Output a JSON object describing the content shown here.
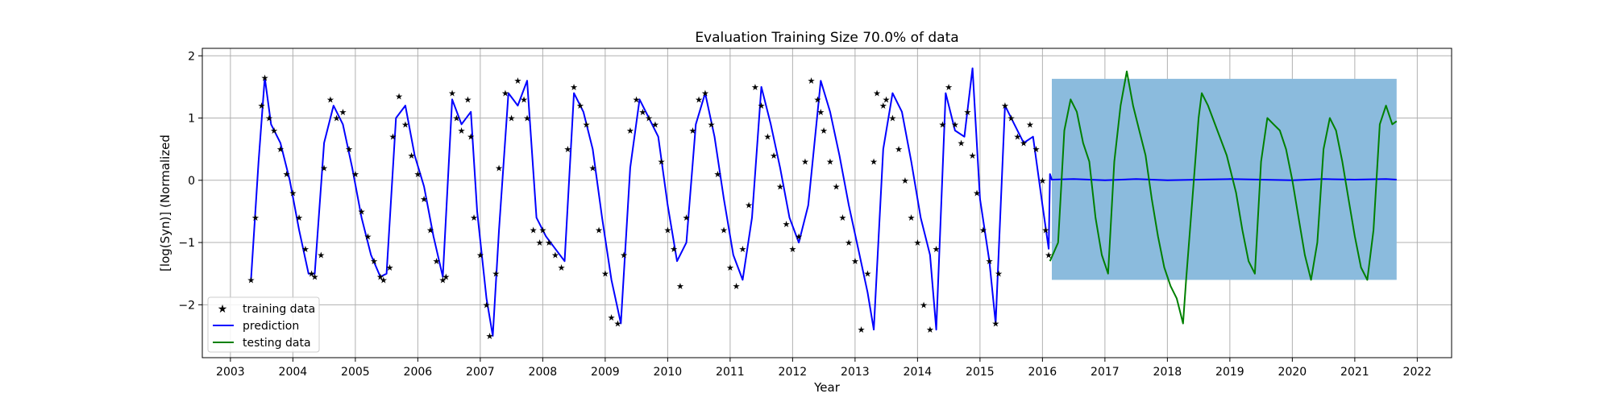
{
  "chart_data": {
    "type": "line",
    "title": "Evaluation Training Size 70.0% of data",
    "xlabel": "Year",
    "ylabel": "[log(Syn)] (Normalized",
    "xlim": [
      2002.55,
      2022.55
    ],
    "ylim": [
      -2.85,
      2.12
    ],
    "x_ticks": [
      2003,
      2004,
      2005,
      2006,
      2007,
      2008,
      2009,
      2010,
      2011,
      2012,
      2013,
      2014,
      2015,
      2016,
      2017,
      2018,
      2019,
      2020,
      2021,
      2022
    ],
    "y_ticks": [
      -2,
      -1,
      0,
      1,
      2
    ],
    "grid": true,
    "legend": {
      "placement": "lower-left",
      "entries": [
        "training data",
        "prediction",
        "testing data"
      ]
    },
    "colors": {
      "training": "#000000",
      "prediction": "#0000ff",
      "testing": "#008000",
      "band": "#8bbbdd"
    },
    "training_data": {
      "x": [
        2003.33,
        2003.4,
        2003.5,
        2003.55,
        2003.62,
        2003.7,
        2003.8,
        2003.9,
        2004.0,
        2004.1,
        2004.2,
        2004.3,
        2004.35,
        2004.45,
        2004.5,
        2004.6,
        2004.7,
        2004.8,
        2004.9,
        2005.0,
        2005.1,
        2005.2,
        2005.3,
        2005.4,
        2005.45,
        2005.55,
        2005.6,
        2005.7,
        2005.8,
        2005.9,
        2006.0,
        2006.1,
        2006.2,
        2006.3,
        2006.4,
        2006.45,
        2006.55,
        2006.62,
        2006.7,
        2006.8,
        2006.85,
        2006.9,
        2007.0,
        2007.1,
        2007.15,
        2007.25,
        2007.3,
        2007.4,
        2007.5,
        2007.6,
        2007.7,
        2007.75,
        2007.85,
        2007.95,
        2008.0,
        2008.1,
        2008.2,
        2008.3,
        2008.4,
        2008.5,
        2008.6,
        2008.7,
        2008.8,
        2008.9,
        2009.0,
        2009.1,
        2009.2,
        2009.3,
        2009.4,
        2009.5,
        2009.6,
        2009.7,
        2009.8,
        2009.9,
        2010.0,
        2010.1,
        2010.2,
        2010.3,
        2010.4,
        2010.5,
        2010.6,
        2010.7,
        2010.8,
        2010.9,
        2011.0,
        2011.1,
        2011.2,
        2011.3,
        2011.4,
        2011.5,
        2011.6,
        2011.7,
        2011.8,
        2011.9,
        2012.0,
        2012.1,
        2012.2,
        2012.3,
        2012.4,
        2012.45,
        2012.5,
        2012.6,
        2012.7,
        2012.8,
        2012.9,
        2013.0,
        2013.1,
        2013.2,
        2013.3,
        2013.35,
        2013.45,
        2013.5,
        2013.6,
        2013.7,
        2013.8,
        2013.9,
        2014.0,
        2014.1,
        2014.2,
        2014.3,
        2014.4,
        2014.5,
        2014.6,
        2014.7,
        2014.8,
        2014.88,
        2014.95,
        2015.05,
        2015.15,
        2015.25,
        2015.3,
        2015.4,
        2015.5,
        2015.6,
        2015.7,
        2015.8,
        2015.9,
        2016.0,
        2016.05,
        2016.1
      ],
      "y": [
        -1.6,
        -0.6,
        1.2,
        1.65,
        1.0,
        0.8,
        0.5,
        0.1,
        -0.2,
        -0.6,
        -1.1,
        -1.5,
        -1.55,
        -1.2,
        0.2,
        1.3,
        1.0,
        1.1,
        0.5,
        0.1,
        -0.5,
        -0.9,
        -1.3,
        -1.55,
        -1.6,
        -1.4,
        0.7,
        1.35,
        0.9,
        0.4,
        0.1,
        -0.3,
        -0.8,
        -1.3,
        -1.6,
        -1.55,
        1.4,
        1.0,
        0.8,
        1.3,
        0.7,
        -0.6,
        -1.2,
        -2.0,
        -2.5,
        -1.5,
        0.2,
        1.4,
        1.0,
        1.6,
        1.3,
        1.0,
        -0.8,
        -1.0,
        -0.8,
        -1.0,
        -1.2,
        -1.4,
        0.5,
        1.5,
        1.2,
        0.9,
        0.2,
        -0.8,
        -1.5,
        -2.2,
        -2.3,
        -1.2,
        0.8,
        1.3,
        1.1,
        1.0,
        0.9,
        0.3,
        -0.8,
        -1.1,
        -1.7,
        -0.6,
        0.8,
        1.3,
        1.4,
        0.9,
        0.1,
        -0.8,
        -1.4,
        -1.7,
        -1.1,
        -0.4,
        1.5,
        1.2,
        0.7,
        0.4,
        -0.1,
        -0.7,
        -1.1,
        -0.9,
        0.3,
        1.6,
        1.3,
        1.1,
        0.8,
        0.3,
        -0.1,
        -0.6,
        -1.0,
        -1.3,
        -2.4,
        -1.5,
        0.3,
        1.4,
        1.2,
        1.3,
        1.0,
        0.5,
        0.0,
        -0.6,
        -1.0,
        -2.0,
        -2.4,
        -1.1,
        0.9,
        1.5,
        0.9,
        0.6,
        1.1,
        0.4,
        -0.2,
        -0.8,
        -1.3,
        -2.3,
        -1.5,
        1.2,
        1.0,
        0.7,
        0.6,
        0.9,
        0.5,
        0.0,
        -0.8,
        -1.2
      ]
    },
    "prediction": {
      "x": [
        2003.33,
        2003.45,
        2003.55,
        2003.65,
        2003.8,
        2003.95,
        2004.1,
        2004.25,
        2004.35,
        2004.5,
        2004.65,
        2004.8,
        2004.95,
        2005.1,
        2005.25,
        2005.4,
        2005.5,
        2005.65,
        2005.8,
        2005.95,
        2006.1,
        2006.25,
        2006.4,
        2006.55,
        2006.7,
        2006.85,
        2006.95,
        2007.1,
        2007.2,
        2007.3,
        2007.45,
        2007.6,
        2007.75,
        2007.9,
        2008.05,
        2008.2,
        2008.35,
        2008.5,
        2008.65,
        2008.8,
        2008.95,
        2009.1,
        2009.25,
        2009.4,
        2009.55,
        2009.7,
        2009.85,
        2010.0,
        2010.15,
        2010.3,
        2010.45,
        2010.6,
        2010.75,
        2010.9,
        2011.05,
        2011.2,
        2011.35,
        2011.5,
        2011.65,
        2011.8,
        2011.95,
        2012.1,
        2012.25,
        2012.45,
        2012.6,
        2012.75,
        2012.9,
        2013.05,
        2013.2,
        2013.3,
        2013.45,
        2013.6,
        2013.75,
        2013.9,
        2014.05,
        2014.2,
        2014.3,
        2014.45,
        2014.6,
        2014.75,
        2014.88,
        2015.0,
        2015.15,
        2015.25,
        2015.4,
        2015.55,
        2015.7,
        2015.85,
        2016.0,
        2016.1,
        2016.12,
        2016.15,
        2016.5,
        2017.0,
        2017.5,
        2018.0,
        2018.5,
        2019.0,
        2019.5,
        2020.0,
        2020.5,
        2021.0,
        2021.5,
        2021.67
      ],
      "y": [
        -1.6,
        0.3,
        1.65,
        0.9,
        0.6,
        0.0,
        -0.8,
        -1.5,
        -1.5,
        0.6,
        1.2,
        0.9,
        0.2,
        -0.6,
        -1.2,
        -1.55,
        -1.5,
        1.0,
        1.2,
        0.4,
        -0.1,
        -0.9,
        -1.55,
        1.3,
        0.9,
        1.1,
        -0.5,
        -1.9,
        -2.5,
        -0.8,
        1.4,
        1.2,
        1.6,
        -0.6,
        -0.9,
        -1.1,
        -1.3,
        1.4,
        1.1,
        0.5,
        -0.6,
        -1.6,
        -2.3,
        0.2,
        1.3,
        1.0,
        0.7,
        -0.4,
        -1.3,
        -1.0,
        0.9,
        1.4,
        0.7,
        -0.3,
        -1.2,
        -1.6,
        -0.6,
        1.5,
        0.9,
        0.2,
        -0.6,
        -1.0,
        -0.4,
        1.6,
        1.1,
        0.4,
        -0.4,
        -1.1,
        -1.8,
        -2.4,
        0.5,
        1.4,
        1.1,
        0.3,
        -0.6,
        -1.2,
        -2.4,
        1.4,
        0.8,
        0.7,
        1.8,
        -0.3,
        -1.3,
        -2.3,
        1.2,
        0.9,
        0.6,
        0.7,
        -0.4,
        -1.1,
        0.1,
        0.01,
        0.02,
        0.0,
        0.02,
        0.0,
        0.01,
        0.02,
        0.01,
        0.0,
        0.02,
        0.01,
        0.02,
        0.01
      ]
    },
    "testing_data": {
      "x": [
        2016.12,
        2016.25,
        2016.35,
        2016.45,
        2016.55,
        2016.65,
        2016.75,
        2016.85,
        2016.95,
        2017.05,
        2017.15,
        2017.25,
        2017.35,
        2017.45,
        2017.55,
        2017.65,
        2017.75,
        2017.85,
        2017.95,
        2018.05,
        2018.15,
        2018.25,
        2018.3,
        2018.4,
        2018.5,
        2018.55,
        2018.65,
        2018.8,
        2018.95,
        2019.1,
        2019.2,
        2019.3,
        2019.4,
        2019.5,
        2019.6,
        2019.7,
        2019.8,
        2019.9,
        2020.0,
        2020.1,
        2020.2,
        2020.3,
        2020.4,
        2020.5,
        2020.6,
        2020.7,
        2020.8,
        2020.9,
        2021.0,
        2021.1,
        2021.2,
        2021.3,
        2021.4,
        2021.5,
        2021.6,
        2021.67
      ],
      "y": [
        -1.3,
        -1.0,
        0.8,
        1.3,
        1.1,
        0.6,
        0.3,
        -0.6,
        -1.2,
        -1.5,
        0.3,
        1.2,
        1.75,
        1.2,
        0.8,
        0.4,
        -0.3,
        -0.9,
        -1.4,
        -1.7,
        -1.9,
        -2.3,
        -1.6,
        -0.3,
        1.0,
        1.4,
        1.2,
        0.8,
        0.4,
        -0.2,
        -0.8,
        -1.3,
        -1.5,
        0.3,
        1.0,
        0.9,
        0.8,
        0.5,
        0.0,
        -0.6,
        -1.2,
        -1.6,
        -1.0,
        0.5,
        1.0,
        0.8,
        0.3,
        -0.3,
        -0.9,
        -1.4,
        -1.6,
        -0.8,
        0.9,
        1.2,
        0.9,
        0.95
      ]
    },
    "uncertainty_band": {
      "x": [
        2016.15,
        2021.67
      ],
      "lower": -1.6,
      "upper": 1.63
    }
  }
}
